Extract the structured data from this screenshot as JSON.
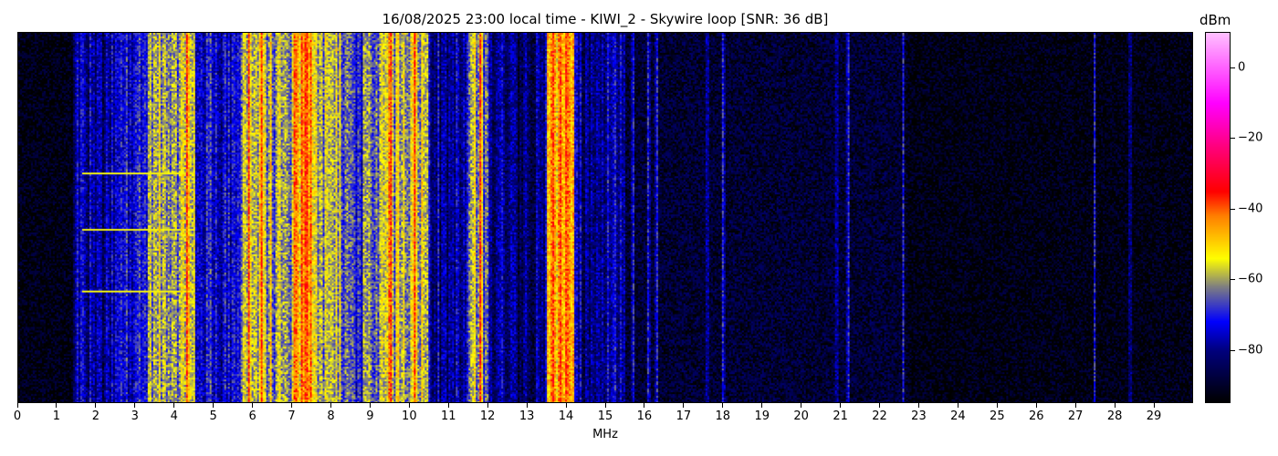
{
  "chart_data": {
    "type": "heatmap",
    "title": "16/08/2025 23:00 local time - KIWI_2 - Skywire loop [SNR: 36 dB]",
    "xlabel": "MHz",
    "xlim": [
      0,
      30
    ],
    "xticks": [
      "0",
      "1",
      "2",
      "3",
      "4",
      "5",
      "6",
      "7",
      "8",
      "9",
      "10",
      "11",
      "12",
      "13",
      "14",
      "15",
      "16",
      "17",
      "18",
      "19",
      "20",
      "21",
      "22",
      "23",
      "24",
      "25",
      "26",
      "27",
      "28",
      "29"
    ],
    "colorbar": {
      "label": "dBm",
      "range": [
        -95,
        10
      ],
      "ticks": [
        "0",
        "−20",
        "−40",
        "−60",
        "−80"
      ],
      "tick_values": [
        0,
        -20,
        -40,
        -60,
        -80
      ],
      "colormap": [
        "#000000",
        "#000080",
        "#0000ff",
        "#808080",
        "#ffff00",
        "#ff8000",
        "#ff0000",
        "#ff0080",
        "#ff00ff",
        "#ffc0ff"
      ]
    },
    "band_levels_dbm": [
      {
        "from": 0,
        "to": 1.4,
        "level": -93
      },
      {
        "from": 1.4,
        "to": 2.5,
        "level": -79
      },
      {
        "from": 2.5,
        "to": 3.3,
        "level": -71
      },
      {
        "from": 3.3,
        "to": 4.5,
        "level": -61
      },
      {
        "from": 4.5,
        "to": 5.7,
        "level": -73
      },
      {
        "from": 5.7,
        "to": 6.5,
        "level": -59
      },
      {
        "from": 6.5,
        "to": 7.0,
        "level": -63
      },
      {
        "from": 7.0,
        "to": 7.6,
        "level": -47
      },
      {
        "from": 7.6,
        "to": 8.2,
        "level": -58
      },
      {
        "from": 8.2,
        "to": 9.2,
        "level": -67
      },
      {
        "from": 9.2,
        "to": 10.5,
        "level": -56
      },
      {
        "from": 10.5,
        "to": 11.5,
        "level": -79
      },
      {
        "from": 11.5,
        "to": 12.0,
        "level": -62
      },
      {
        "from": 12.0,
        "to": 13.5,
        "level": -81
      },
      {
        "from": 13.5,
        "to": 14.2,
        "level": -47
      },
      {
        "from": 14.2,
        "to": 15.5,
        "level": -80
      },
      {
        "from": 15.5,
        "to": 22.7,
        "level": -89
      },
      {
        "from": 22.7,
        "to": 30,
        "level": -93
      }
    ],
    "strong_carriers_mhz": [
      4.3,
      5.9,
      6.2,
      7.25,
      7.35,
      9.5,
      10.1,
      11.8,
      13.65,
      13.85,
      14.0
    ],
    "weak_carriers_mhz": [
      15.7,
      16.1,
      16.3,
      17.6,
      18.0,
      20.9,
      21.2,
      22.6,
      27.5,
      28.4
    ]
  }
}
